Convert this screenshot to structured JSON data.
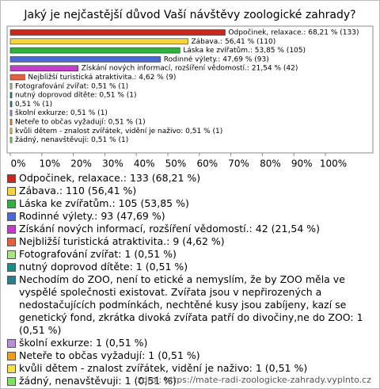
{
  "chart_data": {
    "type": "bar",
    "orientation": "horizontal",
    "title": "Jaký je nejčastější důvod Vaší návštěvy zoologické zahrady?",
    "categories": [
      "Odpočinek, relaxace.: 133 (68,21 %)",
      "Zábava.: 110 (56,41 %)",
      "Láska ke zvířatům.: 105 (53,85 %)",
      "Rodinné výlety.: 93 (47,69 %)",
      "Získání nových informací, rozšíření vědomostí.: 42 (21,54 %)",
      "Nejbližší turistická atraktivita.: 9 (4,62 %)",
      "Fotografování zvířat: 1 (0,51 %)",
      "nutný doprovod dítěte: 1 (0,51 %)",
      "Nechodím do ZOO, není to etické a nemyslím, že by ZOO měla ve vyspělé společnosti existovat. Zvířata jsou v nepřirozených a nedostačujících podmínkách, nechtěné kusy jsou zabíjeny, kazí se genetický fond, zkrátka divoká zvířata patří do divočiny,ne do ZOO: 1 (0,51 %)",
      "školní exkurze: 1 (0,51 %)",
      "Neteře to občas vyžadují: 1 (0,51 %)",
      "kvůli dětem - znalost zvířátek, vidění je naživo: 1 (0,51 %)",
      "žádný, nenavštěvuji: 1 (0,51 %)"
    ],
    "values": [
      68.21,
      56.41,
      53.85,
      47.69,
      21.54,
      4.62,
      0.51,
      0.51,
      0.51,
      0.51,
      0.51,
      0.51,
      0.51
    ],
    "value_labels": [
      "Odpočinek, relaxace.: 68,21 % (133)",
      "Zábava.: 56,41 % (110)",
      "Láska ke zvířatům.: 53,85 % (105)",
      "Rodinné výlety.: 47,69 % (93)",
      "Získání nových informací, rozšíření vědomostí.: 21,54 % (42)",
      "Nejbližší turistická atraktivita.: 4,62 % (9)",
      "Fotografování zvířat: 0,51 % (1)",
      "nutný doprovod dítěte: 0,51 % (1)",
      "0,51 % (1)",
      "školní exkurze: 0,51 % (1)",
      "Neteře to občas vyžadují: 0,51 % (1)",
      "kvůli dětem - znalost zvířátek, vidění je naživo: 0,51 % (1)",
      "žádný, nenavštěvuji: 0,51 % (1)"
    ],
    "colors": [
      "#c8281e",
      "#f7d43c",
      "#2eb03c",
      "#4a6ad8",
      "#c33ccc",
      "#e5603f",
      "#a6e482",
      "#1a8c86",
      "#2b7d92",
      "#b98cdc",
      "#f39a1a",
      "#f2e04a",
      "#7ee05c"
    ],
    "xlim": [
      0,
      100
    ],
    "xticks": [
      {
        "value": 0,
        "label": "0%"
      },
      {
        "value": 10,
        "label": "10%"
      },
      {
        "value": 20,
        "label": "20%"
      },
      {
        "value": 30,
        "label": "30%"
      },
      {
        "value": 40,
        "label": "40%"
      },
      {
        "value": 50,
        "label": "50%"
      },
      {
        "value": 60,
        "label": "60%"
      },
      {
        "value": 70,
        "label": "70%"
      },
      {
        "value": 80,
        "label": "80%"
      },
      {
        "value": 90,
        "label": "90%"
      },
      {
        "value": 100,
        "label": "100%"
      }
    ],
    "source": "zdroj: https://mate-radi-zoologicke-zahrady.vyplnto.cz"
  }
}
